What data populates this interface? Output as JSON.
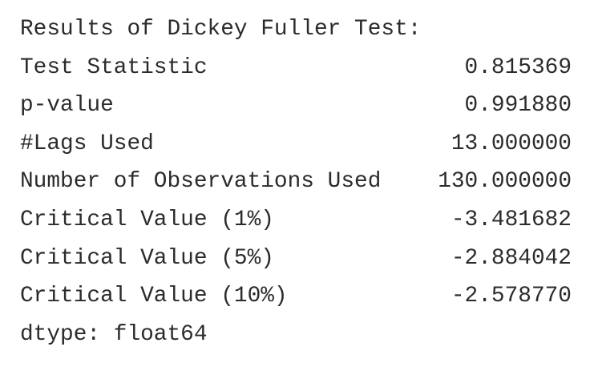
{
  "header": "Results of Dickey Fuller Test:",
  "rows": [
    [
      "Test Statistic",
      "0.815369"
    ],
    [
      "p-value",
      "0.991880"
    ],
    [
      "#Lags Used",
      "13.000000"
    ],
    [
      "Number of Observations Used",
      "130.000000"
    ],
    [
      "Critical Value (1%)",
      "-3.481682"
    ],
    [
      "Critical Value (5%)",
      "-2.884042"
    ],
    [
      "Critical Value (10%)",
      "-2.578770"
    ]
  ],
  "footer": "dtype: float64"
}
